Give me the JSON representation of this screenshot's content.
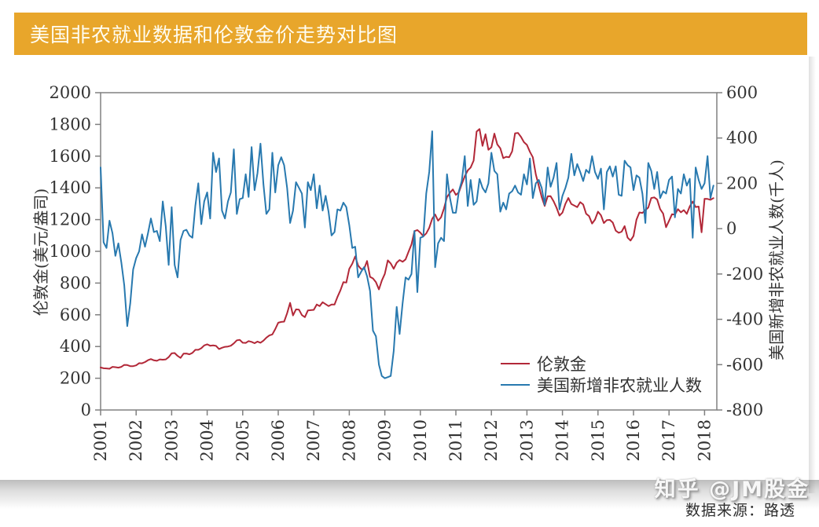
{
  "header": {
    "title": "美国非农就业数据和伦敦金价走势对比图",
    "background_color": "#E8A62B",
    "text_color": "#FFFDF2"
  },
  "footer": {
    "source_label": "数据来源：路透"
  },
  "watermark": {
    "text": "知乎 @JM股金"
  },
  "chart_data": {
    "type": "line",
    "title": "美国非农就业数据和伦敦金价走势对比图",
    "grid": false,
    "axis_color": "#808080",
    "x_start": 2001.0,
    "x_step": 0.0833,
    "x_tick_labels": [
      "2001",
      "2002",
      "2003",
      "2004",
      "2005",
      "2006",
      "2007",
      "2008",
      "2009",
      "2010",
      "2011",
      "2012",
      "2013",
      "2014",
      "2015",
      "2016",
      "2017",
      "2018"
    ],
    "axes": {
      "left": {
        "label": "伦敦金(美元/盎司)",
        "min": 0,
        "max": 2000,
        "ticks": [
          0,
          200,
          400,
          600,
          800,
          1000,
          1200,
          1400,
          1600,
          1800,
          2000
        ]
      },
      "right": {
        "label": "美国新增非农就业人数(千人)",
        "min": -800,
        "max": 600,
        "ticks": [
          -800,
          -600,
          -400,
          -200,
          0,
          200,
          400,
          600
        ]
      }
    },
    "legend": {
      "position": "inside-bottom-right",
      "entries": [
        {
          "name": "伦敦金",
          "color": "#B22838"
        },
        {
          "name": "美国新增非农就业人数",
          "color": "#2879AF"
        }
      ]
    },
    "series": [
      {
        "name": "伦敦金",
        "axis": "left",
        "color": "#B22838",
        "values": [
          268,
          263,
          262,
          260,
          272,
          270,
          267,
          272,
          284,
          283,
          276,
          276,
          281,
          295,
          294,
          302,
          314,
          321,
          313,
          310,
          319,
          317,
          319,
          333,
          357,
          359,
          341,
          328,
          355,
          356,
          351,
          360,
          379,
          379,
          389,
          407,
          414,
          405,
          407,
          404,
          384,
          392,
          398,
          400,
          405,
          420,
          439,
          442,
          424,
          423,
          434,
          429,
          421,
          431,
          424,
          437,
          456,
          470,
          476,
          510,
          550,
          555,
          557,
          610,
          675,
          596,
          634,
          632,
          598,
          585,
          627,
          629,
          631,
          665,
          655,
          679,
          667,
          655,
          665,
          665,
          712,
          754,
          806,
          803,
          890,
          922,
          968,
          910,
          888,
          889,
          939,
          839,
          829,
          806,
          760,
          816,
          858,
          943,
          924,
          890,
          928,
          945,
          934,
          949,
          996,
          1043,
          1127,
          1134,
          1118,
          1095,
          1113,
          1148,
          1205,
          1232,
          1193,
          1215,
          1271,
          1342,
          1370,
          1390,
          1356,
          1372,
          1424,
          1473,
          1510,
          1528,
          1572,
          1755,
          1771,
          1665,
          1738,
          1640,
          1656,
          1742,
          1674,
          1650,
          1587,
          1596,
          1593,
          1630,
          1744,
          1746,
          1721,
          1688,
          1671,
          1627,
          1593,
          1485,
          1413,
          1342,
          1286,
          1347,
          1348,
          1316,
          1275,
          1225,
          1244,
          1300,
          1336,
          1298,
          1288,
          1278,
          1310,
          1295,
          1237,
          1222,
          1175,
          1200,
          1250,
          1227,
          1178,
          1197,
          1198,
          1181,
          1130,
          1117,
          1124,
          1159,
          1086,
          1068,
          1097,
          1200,
          1245,
          1242,
          1260,
          1276,
          1336,
          1340,
          1326,
          1266,
          1238,
          1152,
          1192,
          1234,
          1231,
          1266,
          1246,
          1260,
          1236,
          1283,
          1314,
          1279,
          1282,
          1120,
          1331,
          1330,
          1325,
          1335
        ]
      },
      {
        "name": "美国新增非农就业人数",
        "axis": "right",
        "color": "#2879AF",
        "values": [
          270,
          -60,
          -85,
          35,
          -20,
          -120,
          -65,
          -150,
          -250,
          -430,
          -330,
          -180,
          -130,
          -100,
          -25,
          -80,
          -20,
          45,
          -15,
          -10,
          -55,
          120,
          10,
          -160,
          95,
          -160,
          -215,
          -50,
          -10,
          -5,
          -30,
          -40,
          100,
          200,
          20,
          120,
          160,
          45,
          335,
          250,
          310,
          80,
          45,
          120,
          160,
          350,
          65,
          130,
          135,
          240,
          140,
          360,
          170,
          245,
          375,
          195,
          65,
          85,
          335,
          160,
          280,
          315,
          280,
          180,
          25,
          80,
          205,
          180,
          155,
          5,
          205,
          170,
          240,
          90,
          190,
          80,
          145,
          75,
          -30,
          -15,
          85,
          80,
          115,
          95,
          15,
          -85,
          -80,
          -215,
          -190,
          -170,
          -210,
          -275,
          -450,
          -475,
          -600,
          -650,
          -660,
          -655,
          -650,
          -540,
          -345,
          -465,
          -330,
          -215,
          -225,
          -200,
          -10,
          -280,
          -40,
          -35,
          155,
          250,
          430,
          -170,
          -65,
          -40,
          -55,
          240,
          135,
          70,
          70,
          165,
          210,
          320,
          100,
          215,
          105,
          120,
          220,
          180,
          160,
          200,
          335,
          255,
          240,
          75,
          115,
          85,
          155,
          165,
          190,
          160,
          150,
          240,
          195,
          310,
          135,
          200,
          215,
          180,
          105,
          270,
          185,
          225,
          290,
          85,
          145,
          180,
          225,
          330,
          235,
          285,
          250,
          210,
          260,
          245,
          320,
          250,
          220,
          265,
          85,
          250,
          275,
          230,
          275,
          150,
          145,
          300,
          280,
          270,
          170,
          235,
          225,
          155,
          25,
          290,
          255,
          175,
          250,
          135,
          165,
          155,
          215,
          230,
          50,
          175,
          155,
          240,
          190,
          220,
          -40,
          270,
          215,
          175,
          200,
          320,
          135,
          190
        ]
      }
    ]
  }
}
